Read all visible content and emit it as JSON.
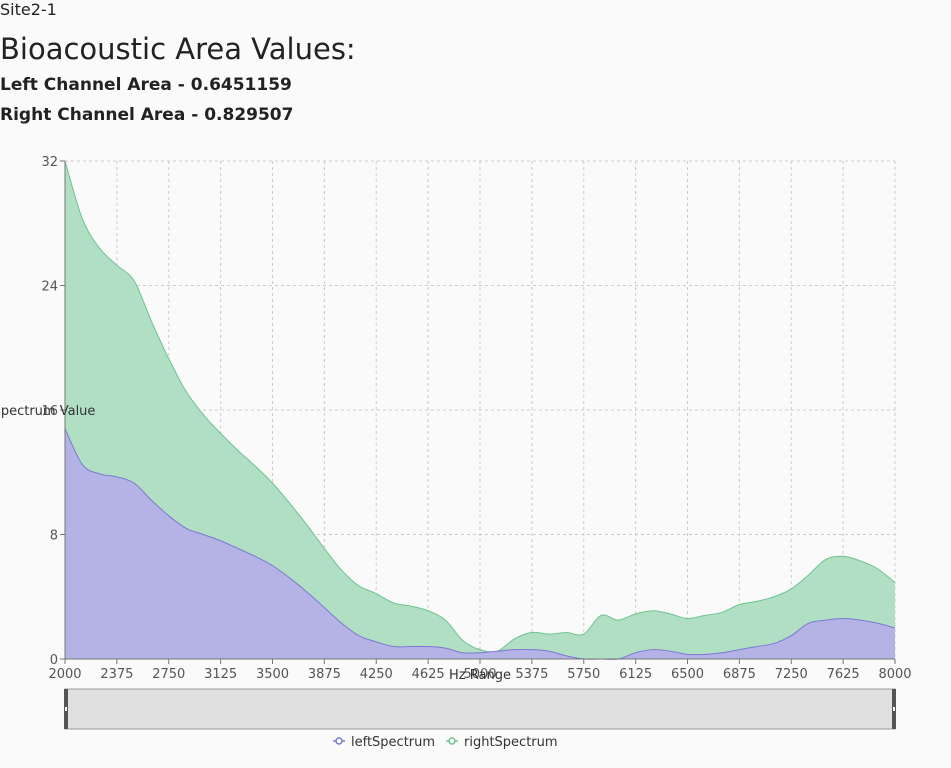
{
  "header": {
    "site": "Site2-1",
    "title": "Bioacoustic Area Values:",
    "left_area_label": "Left Channel Area - ",
    "left_area_value": "0.6451159",
    "right_area_label": "Right Channel Area - ",
    "right_area_value": "0.829507"
  },
  "colors": {
    "left": "#7b78d2",
    "left_fill": "#b5b3e6",
    "right": "#6cc48f",
    "right_fill": "#b1dfc3",
    "grid": "#cccccc",
    "axis": "#777777",
    "slider_bg": "#e0e0e0",
    "slider_handle": "#555555"
  },
  "chart_data": {
    "type": "area",
    "stacked": true,
    "xlabel": "Hz Range",
    "ylabel": "Spectrum Value",
    "x": [
      2000,
      2125,
      2250,
      2375,
      2500,
      2625,
      2750,
      2875,
      3000,
      3125,
      3250,
      3375,
      3500,
      3625,
      3750,
      3875,
      4000,
      4125,
      4250,
      4375,
      4500,
      4625,
      4750,
      4875,
      5000,
      5125,
      5250,
      5375,
      5500,
      5625,
      5750,
      5875,
      6000,
      6125,
      6250,
      6375,
      6500,
      6625,
      6750,
      6875,
      7000,
      7125,
      7250,
      7375,
      7500,
      7625,
      7750,
      7875,
      8000
    ],
    "x_ticks": [
      2000,
      2375,
      2750,
      3125,
      3500,
      3875,
      4250,
      4625,
      5000,
      5375,
      5750,
      6125,
      6500,
      6875,
      7250,
      7625,
      8000
    ],
    "y_ticks": [
      0,
      8,
      16,
      24,
      32
    ],
    "ylim": [
      0,
      32
    ],
    "xlim": [
      2000,
      8000
    ],
    "grid": true,
    "legend_position": "bottom-center",
    "series": [
      {
        "name": "leftSpectrum",
        "values": [
          14.8,
          12.5,
          11.9,
          11.7,
          11.3,
          10.2,
          9.2,
          8.4,
          8.0,
          7.6,
          7.1,
          6.6,
          6.0,
          5.2,
          4.3,
          3.3,
          2.3,
          1.5,
          1.1,
          0.8,
          0.8,
          0.8,
          0.7,
          0.4,
          0.4,
          0.5,
          0.6,
          0.6,
          0.5,
          0.2,
          0.0,
          0.0,
          0.0,
          0.4,
          0.6,
          0.5,
          0.3,
          0.3,
          0.4,
          0.6,
          0.8,
          1.0,
          1.5,
          2.3,
          2.5,
          2.6,
          2.5,
          2.3,
          2.0
        ]
      },
      {
        "name": "rightSpectrum",
        "values": [
          17.2,
          15.8,
          14.5,
          13.6,
          13.0,
          11.5,
          10.1,
          8.8,
          7.7,
          6.9,
          6.3,
          5.8,
          5.3,
          4.8,
          4.3,
          3.8,
          3.4,
          3.2,
          3.1,
          2.8,
          2.6,
          2.3,
          1.8,
          0.8,
          0.2,
          0.0,
          0.7,
          1.1,
          1.1,
          1.5,
          1.6,
          2.8,
          2.5,
          2.5,
          2.5,
          2.4,
          2.3,
          2.5,
          2.6,
          2.9,
          2.9,
          3.0,
          3.0,
          3.1,
          3.9,
          4.0,
          3.8,
          3.5,
          2.9
        ]
      }
    ],
    "data_zoom": {
      "start": 2000,
      "end": 8000
    }
  }
}
